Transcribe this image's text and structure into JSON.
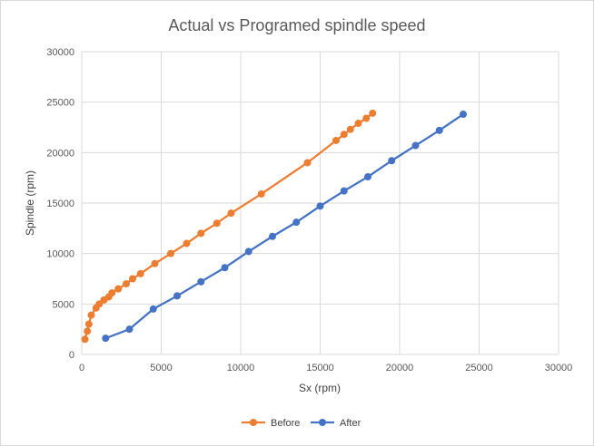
{
  "chart_data": {
    "type": "scatter",
    "title": "Actual vs Programed spindle speed",
    "xlabel": "Sx (rpm)",
    "ylabel": "Spindle (rpm)",
    "xlim": [
      0,
      30000
    ],
    "ylim": [
      0,
      30000
    ],
    "x_ticks": [
      "0",
      "5000",
      "10000",
      "15000",
      "20000",
      "25000",
      "30000"
    ],
    "y_ticks": [
      "0",
      "5000",
      "10000",
      "15000",
      "20000",
      "25000",
      "30000"
    ],
    "grid": true,
    "legend_position": "bottom",
    "series": [
      {
        "name": "Before",
        "color": "#ED7D31",
        "points": [
          [
            200,
            1500
          ],
          [
            350,
            2300
          ],
          [
            450,
            3000
          ],
          [
            600,
            3900
          ],
          [
            900,
            4600
          ],
          [
            1100,
            5000
          ],
          [
            1400,
            5400
          ],
          [
            1700,
            5700
          ],
          [
            1900,
            6100
          ],
          [
            2300,
            6500
          ],
          [
            2800,
            7000
          ],
          [
            3200,
            7500
          ],
          [
            3700,
            8000
          ],
          [
            4600,
            9000
          ],
          [
            5600,
            10000
          ],
          [
            6600,
            11000
          ],
          [
            7500,
            12000
          ],
          [
            8500,
            13000
          ],
          [
            9400,
            14000
          ],
          [
            11300,
            15900
          ],
          [
            14200,
            19000
          ],
          [
            16000,
            21200
          ],
          [
            16500,
            21800
          ],
          [
            16900,
            22300
          ],
          [
            17400,
            22900
          ],
          [
            17900,
            23400
          ],
          [
            18300,
            23900
          ]
        ]
      },
      {
        "name": "After",
        "color": "#4472C4",
        "points": [
          [
            1500,
            1600
          ],
          [
            3000,
            2500
          ],
          [
            4500,
            4500
          ],
          [
            6000,
            5800
          ],
          [
            7500,
            7200
          ],
          [
            9000,
            8600
          ],
          [
            10500,
            10200
          ],
          [
            12000,
            11700
          ],
          [
            13500,
            13100
          ],
          [
            15000,
            14700
          ],
          [
            16500,
            16200
          ],
          [
            18000,
            17600
          ],
          [
            19500,
            19200
          ],
          [
            21000,
            20700
          ],
          [
            22500,
            22200
          ],
          [
            24000,
            23800
          ]
        ]
      }
    ]
  }
}
